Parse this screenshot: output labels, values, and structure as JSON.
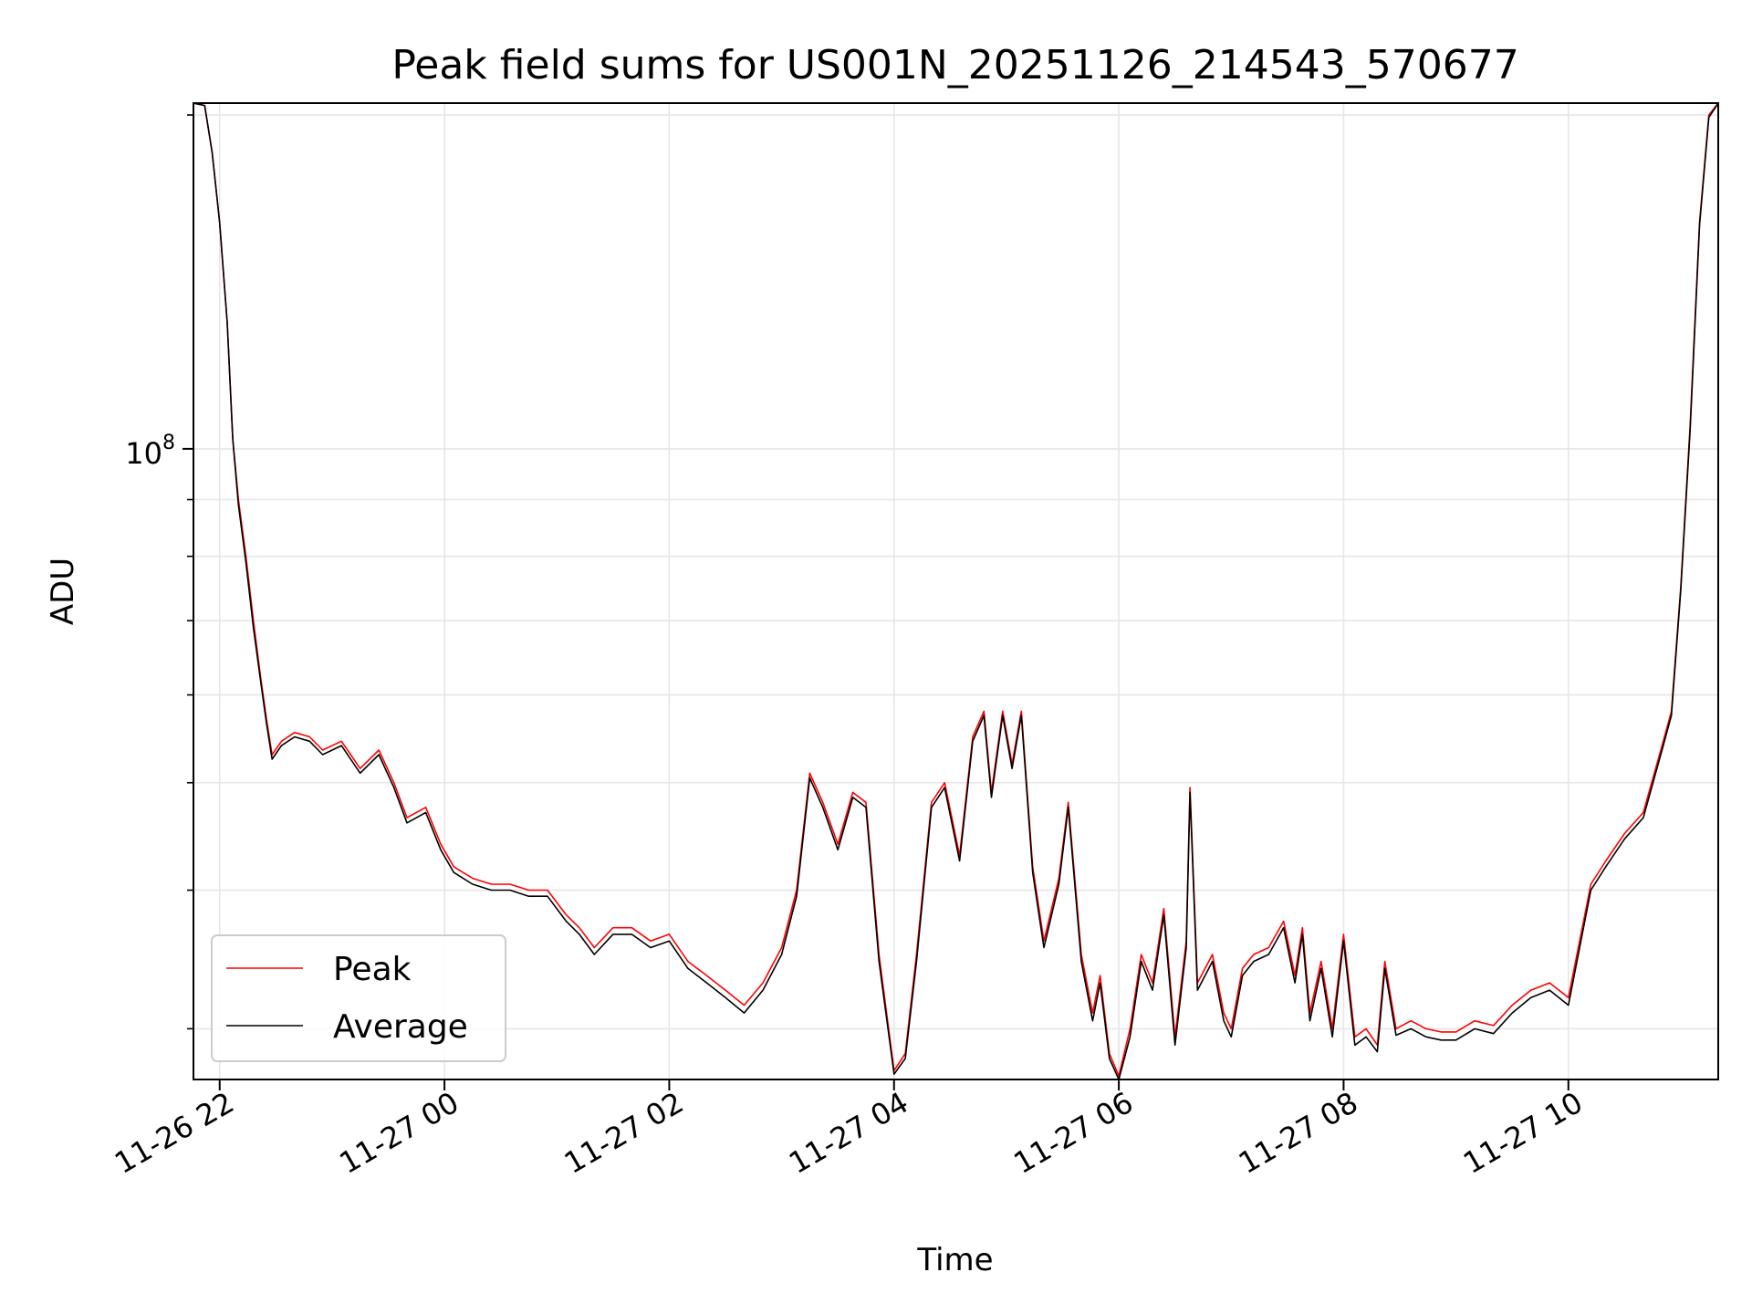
{
  "chart_data": {
    "type": "line",
    "title": "Peak field sums for US001N_20251126_214543_570677",
    "xlabel": "Time",
    "ylabel": "ADU",
    "y_scale": "log",
    "ylim": [
      27000000,
      205000000
    ],
    "xlim": [
      "2025-11-26 21:46",
      "2025-11-27 11:20"
    ],
    "grid": true,
    "legend_position": "lower-left",
    "x_ticks": [
      {
        "value": "2025-11-26 22:00",
        "label": "11-26 22"
      },
      {
        "value": "2025-11-27 00:00",
        "label": "11-27 00"
      },
      {
        "value": "2025-11-27 02:00",
        "label": "11-27 02"
      },
      {
        "value": "2025-11-27 04:00",
        "label": "11-27 04"
      },
      {
        "value": "2025-11-27 06:00",
        "label": "11-27 06"
      },
      {
        "value": "2025-11-27 08:00",
        "label": "11-27 08"
      },
      {
        "value": "2025-11-27 10:00",
        "label": "11-27 10"
      }
    ],
    "y_major_ticks": [
      {
        "value": 100000000,
        "label_base": "10",
        "label_exp": "8"
      }
    ],
    "y_minor_ticks": [
      30000000,
      40000000,
      50000000,
      60000000,
      70000000,
      80000000,
      90000000,
      200000000
    ],
    "series": [
      {
        "name": "Peak",
        "color": "#ff0000",
        "points": [
          [
            "2025-11-26 21:46",
            205000000
          ],
          [
            "2025-11-26 21:52",
            204000000
          ],
          [
            "2025-11-26 21:56",
            185000000
          ],
          [
            "2025-11-26 22:00",
            160000000
          ],
          [
            "2025-11-26 22:04",
            130000000
          ],
          [
            "2025-11-26 22:07",
            102000000
          ],
          [
            "2025-11-26 22:10",
            90000000
          ],
          [
            "2025-11-26 22:14",
            80000000
          ],
          [
            "2025-11-26 22:18",
            70000000
          ],
          [
            "2025-11-26 22:22",
            62000000
          ],
          [
            "2025-11-26 22:25",
            57000000
          ],
          [
            "2025-11-26 22:28",
            53000000
          ],
          [
            "2025-11-26 22:33",
            54500000
          ],
          [
            "2025-11-26 22:40",
            55500000
          ],
          [
            "2025-11-26 22:48",
            55000000
          ],
          [
            "2025-11-26 22:55",
            53500000
          ],
          [
            "2025-11-26 23:05",
            54500000
          ],
          [
            "2025-11-26 23:15",
            51500000
          ],
          [
            "2025-11-26 23:25",
            53500000
          ],
          [
            "2025-11-26 23:33",
            50000000
          ],
          [
            "2025-11-26 23:40",
            46500000
          ],
          [
            "2025-11-26 23:50",
            47500000
          ],
          [
            "2025-11-26 23:58",
            44000000
          ],
          [
            "2025-11-27 00:05",
            42000000
          ],
          [
            "2025-11-27 00:15",
            41000000
          ],
          [
            "2025-11-27 00:25",
            40500000
          ],
          [
            "2025-11-27 00:35",
            40500000
          ],
          [
            "2025-11-27 00:45",
            40000000
          ],
          [
            "2025-11-27 00:55",
            40000000
          ],
          [
            "2025-11-27 01:05",
            38000000
          ],
          [
            "2025-11-27 01:12",
            37000000
          ],
          [
            "2025-11-27 01:20",
            35500000
          ],
          [
            "2025-11-27 01:30",
            37000000
          ],
          [
            "2025-11-27 01:40",
            37000000
          ],
          [
            "2025-11-27 01:50",
            36000000
          ],
          [
            "2025-11-27 02:00",
            36500000
          ],
          [
            "2025-11-27 02:10",
            34500000
          ],
          [
            "2025-11-27 02:20",
            33500000
          ],
          [
            "2025-11-27 02:30",
            32500000
          ],
          [
            "2025-11-27 02:40",
            31500000
          ],
          [
            "2025-11-27 02:50",
            33000000
          ],
          [
            "2025-11-27 03:00",
            35500000
          ],
          [
            "2025-11-27 03:08",
            40000000
          ],
          [
            "2025-11-27 03:15",
            51000000
          ],
          [
            "2025-11-27 03:22",
            48000000
          ],
          [
            "2025-11-27 03:30",
            44000000
          ],
          [
            "2025-11-27 03:38",
            49000000
          ],
          [
            "2025-11-27 03:45",
            48000000
          ],
          [
            "2025-11-27 03:52",
            35000000
          ],
          [
            "2025-11-27 04:00",
            27500000
          ],
          [
            "2025-11-27 04:06",
            28500000
          ],
          [
            "2025-11-27 04:12",
            35000000
          ],
          [
            "2025-11-27 04:20",
            48000000
          ],
          [
            "2025-11-27 04:27",
            50000000
          ],
          [
            "2025-11-27 04:35",
            43000000
          ],
          [
            "2025-11-27 04:42",
            55000000
          ],
          [
            "2025-11-27 04:48",
            58000000
          ],
          [
            "2025-11-27 04:52",
            49000000
          ],
          [
            "2025-11-27 04:58",
            58000000
          ],
          [
            "2025-11-27 05:03",
            52000000
          ],
          [
            "2025-11-27 05:08",
            58000000
          ],
          [
            "2025-11-27 05:14",
            42000000
          ],
          [
            "2025-11-27 05:20",
            36000000
          ],
          [
            "2025-11-27 05:28",
            41000000
          ],
          [
            "2025-11-27 05:33",
            48000000
          ],
          [
            "2025-11-27 05:40",
            35000000
          ],
          [
            "2025-11-27 05:46",
            31000000
          ],
          [
            "2025-11-27 05:50",
            33500000
          ],
          [
            "2025-11-27 05:55",
            28500000
          ],
          [
            "2025-11-27 06:00",
            27200000
          ],
          [
            "2025-11-27 06:06",
            30000000
          ],
          [
            "2025-11-27 06:12",
            35000000
          ],
          [
            "2025-11-27 06:18",
            33000000
          ],
          [
            "2025-11-27 06:24",
            38500000
          ],
          [
            "2025-11-27 06:30",
            29500000
          ],
          [
            "2025-11-27 06:36",
            36000000
          ],
          [
            "2025-11-27 06:38",
            49500000
          ],
          [
            "2025-11-27 06:42",
            33000000
          ],
          [
            "2025-11-27 06:50",
            35000000
          ],
          [
            "2025-11-27 06:56",
            31000000
          ],
          [
            "2025-11-27 07:00",
            30000000
          ],
          [
            "2025-11-27 07:06",
            34000000
          ],
          [
            "2025-11-27 07:12",
            35000000
          ],
          [
            "2025-11-27 07:20",
            35500000
          ],
          [
            "2025-11-27 07:28",
            37500000
          ],
          [
            "2025-11-27 07:34",
            33500000
          ],
          [
            "2025-11-27 07:38",
            37000000
          ],
          [
            "2025-11-27 07:42",
            31000000
          ],
          [
            "2025-11-27 07:48",
            34500000
          ],
          [
            "2025-11-27 07:54",
            30000000
          ],
          [
            "2025-11-27 08:00",
            36500000
          ],
          [
            "2025-11-27 08:06",
            29500000
          ],
          [
            "2025-11-27 08:12",
            30000000
          ],
          [
            "2025-11-27 08:18",
            29000000
          ],
          [
            "2025-11-27 08:22",
            34500000
          ],
          [
            "2025-11-27 08:28",
            30000000
          ],
          [
            "2025-11-27 08:36",
            30500000
          ],
          [
            "2025-11-27 08:44",
            30000000
          ],
          [
            "2025-11-27 08:52",
            29800000
          ],
          [
            "2025-11-27 09:00",
            29800000
          ],
          [
            "2025-11-27 09:10",
            30500000
          ],
          [
            "2025-11-27 09:20",
            30200000
          ],
          [
            "2025-11-27 09:30",
            31500000
          ],
          [
            "2025-11-27 09:40",
            32500000
          ],
          [
            "2025-11-27 09:50",
            33000000
          ],
          [
            "2025-11-27 10:00",
            32000000
          ],
          [
            "2025-11-27 10:06",
            36000000
          ],
          [
            "2025-11-27 10:12",
            40500000
          ],
          [
            "2025-11-27 10:20",
            42500000
          ],
          [
            "2025-11-27 10:30",
            45000000
          ],
          [
            "2025-11-27 10:40",
            47000000
          ],
          [
            "2025-11-27 10:50",
            54000000
          ],
          [
            "2025-11-27 10:55",
            58000000
          ],
          [
            "2025-11-27 11:00",
            75000000
          ],
          [
            "2025-11-27 11:05",
            105000000
          ],
          [
            "2025-11-27 11:10",
            160000000
          ],
          [
            "2025-11-27 11:15",
            200000000
          ],
          [
            "2025-11-27 11:20",
            205000000
          ]
        ]
      },
      {
        "name": "Average",
        "color": "#000000",
        "points": [
          [
            "2025-11-26 21:46",
            205000000
          ],
          [
            "2025-11-26 21:52",
            204000000
          ],
          [
            "2025-11-26 21:56",
            185000000
          ],
          [
            "2025-11-26 22:00",
            160000000
          ],
          [
            "2025-11-26 22:04",
            130000000
          ],
          [
            "2025-11-26 22:07",
            102000000
          ],
          [
            "2025-11-26 22:10",
            89000000
          ],
          [
            "2025-11-26 22:14",
            79000000
          ],
          [
            "2025-11-26 22:18",
            69000000
          ],
          [
            "2025-11-26 22:22",
            61500000
          ],
          [
            "2025-11-26 22:25",
            56500000
          ],
          [
            "2025-11-26 22:28",
            52500000
          ],
          [
            "2025-11-26 22:33",
            54000000
          ],
          [
            "2025-11-26 22:40",
            55000000
          ],
          [
            "2025-11-26 22:48",
            54500000
          ],
          [
            "2025-11-26 22:55",
            53000000
          ],
          [
            "2025-11-26 23:05",
            54000000
          ],
          [
            "2025-11-26 23:15",
            51000000
          ],
          [
            "2025-11-26 23:25",
            53000000
          ],
          [
            "2025-11-26 23:33",
            49500000
          ],
          [
            "2025-11-26 23:40",
            46000000
          ],
          [
            "2025-11-26 23:50",
            47000000
          ],
          [
            "2025-11-26 23:58",
            43500000
          ],
          [
            "2025-11-27 00:05",
            41500000
          ],
          [
            "2025-11-27 00:15",
            40500000
          ],
          [
            "2025-11-27 00:25",
            40000000
          ],
          [
            "2025-11-27 00:35",
            40000000
          ],
          [
            "2025-11-27 00:45",
            39500000
          ],
          [
            "2025-11-27 00:55",
            39500000
          ],
          [
            "2025-11-27 01:05",
            37500000
          ],
          [
            "2025-11-27 01:12",
            36500000
          ],
          [
            "2025-11-27 01:20",
            35000000
          ],
          [
            "2025-11-27 01:30",
            36500000
          ],
          [
            "2025-11-27 01:40",
            36500000
          ],
          [
            "2025-11-27 01:50",
            35500000
          ],
          [
            "2025-11-27 02:00",
            36000000
          ],
          [
            "2025-11-27 02:10",
            34000000
          ],
          [
            "2025-11-27 02:20",
            33000000
          ],
          [
            "2025-11-27 02:30",
            32000000
          ],
          [
            "2025-11-27 02:40",
            31000000
          ],
          [
            "2025-11-27 02:50",
            32500000
          ],
          [
            "2025-11-27 03:00",
            35000000
          ],
          [
            "2025-11-27 03:08",
            39500000
          ],
          [
            "2025-11-27 03:15",
            50500000
          ],
          [
            "2025-11-27 03:22",
            47500000
          ],
          [
            "2025-11-27 03:30",
            43500000
          ],
          [
            "2025-11-27 03:38",
            48500000
          ],
          [
            "2025-11-27 03:45",
            47500000
          ],
          [
            "2025-11-27 03:52",
            34500000
          ],
          [
            "2025-11-27 04:00",
            27300000
          ],
          [
            "2025-11-27 04:06",
            28200000
          ],
          [
            "2025-11-27 04:12",
            34500000
          ],
          [
            "2025-11-27 04:20",
            47500000
          ],
          [
            "2025-11-27 04:27",
            49500000
          ],
          [
            "2025-11-27 04:35",
            42500000
          ],
          [
            "2025-11-27 04:42",
            54500000
          ],
          [
            "2025-11-27 04:48",
            57500000
          ],
          [
            "2025-11-27 04:52",
            48500000
          ],
          [
            "2025-11-27 04:58",
            57500000
          ],
          [
            "2025-11-27 05:03",
            51500000
          ],
          [
            "2025-11-27 05:08",
            57500000
          ],
          [
            "2025-11-27 05:14",
            41500000
          ],
          [
            "2025-11-27 05:20",
            35500000
          ],
          [
            "2025-11-27 05:28",
            40500000
          ],
          [
            "2025-11-27 05:33",
            47500000
          ],
          [
            "2025-11-27 05:40",
            34500000
          ],
          [
            "2025-11-27 05:46",
            30500000
          ],
          [
            "2025-11-27 05:50",
            33000000
          ],
          [
            "2025-11-27 05:55",
            28200000
          ],
          [
            "2025-11-27 06:00",
            27000000
          ],
          [
            "2025-11-27 06:06",
            29500000
          ],
          [
            "2025-11-27 06:12",
            34500000
          ],
          [
            "2025-11-27 06:18",
            32500000
          ],
          [
            "2025-11-27 06:24",
            38000000
          ],
          [
            "2025-11-27 06:30",
            29000000
          ],
          [
            "2025-11-27 06:36",
            35500000
          ],
          [
            "2025-11-27 06:38",
            49000000
          ],
          [
            "2025-11-27 06:42",
            32500000
          ],
          [
            "2025-11-27 06:50",
            34500000
          ],
          [
            "2025-11-27 06:56",
            30500000
          ],
          [
            "2025-11-27 07:00",
            29500000
          ],
          [
            "2025-11-27 07:06",
            33500000
          ],
          [
            "2025-11-27 07:12",
            34500000
          ],
          [
            "2025-11-27 07:20",
            35000000
          ],
          [
            "2025-11-27 07:28",
            37000000
          ],
          [
            "2025-11-27 07:34",
            33000000
          ],
          [
            "2025-11-27 07:38",
            36500000
          ],
          [
            "2025-11-27 07:42",
            30500000
          ],
          [
            "2025-11-27 07:48",
            34000000
          ],
          [
            "2025-11-27 07:54",
            29500000
          ],
          [
            "2025-11-27 08:00",
            36000000
          ],
          [
            "2025-11-27 08:06",
            29000000
          ],
          [
            "2025-11-27 08:12",
            29500000
          ],
          [
            "2025-11-27 08:18",
            28600000
          ],
          [
            "2025-11-27 08:22",
            34000000
          ],
          [
            "2025-11-27 08:28",
            29600000
          ],
          [
            "2025-11-27 08:36",
            30000000
          ],
          [
            "2025-11-27 08:44",
            29500000
          ],
          [
            "2025-11-27 08:52",
            29300000
          ],
          [
            "2025-11-27 09:00",
            29300000
          ],
          [
            "2025-11-27 09:10",
            30000000
          ],
          [
            "2025-11-27 09:20",
            29700000
          ],
          [
            "2025-11-27 09:30",
            31000000
          ],
          [
            "2025-11-27 09:40",
            32000000
          ],
          [
            "2025-11-27 09:50",
            32500000
          ],
          [
            "2025-11-27 10:00",
            31500000
          ],
          [
            "2025-11-27 10:06",
            35500000
          ],
          [
            "2025-11-27 10:12",
            40000000
          ],
          [
            "2025-11-27 10:20",
            42000000
          ],
          [
            "2025-11-27 10:30",
            44500000
          ],
          [
            "2025-11-27 10:40",
            46500000
          ],
          [
            "2025-11-27 10:50",
            53500000
          ],
          [
            "2025-11-27 10:55",
            57500000
          ],
          [
            "2025-11-27 11:00",
            74500000
          ],
          [
            "2025-11-27 11:05",
            104000000
          ],
          [
            "2025-11-27 11:10",
            159000000
          ],
          [
            "2025-11-27 11:15",
            199000000
          ],
          [
            "2025-11-27 11:20",
            205000000
          ]
        ]
      }
    ]
  }
}
